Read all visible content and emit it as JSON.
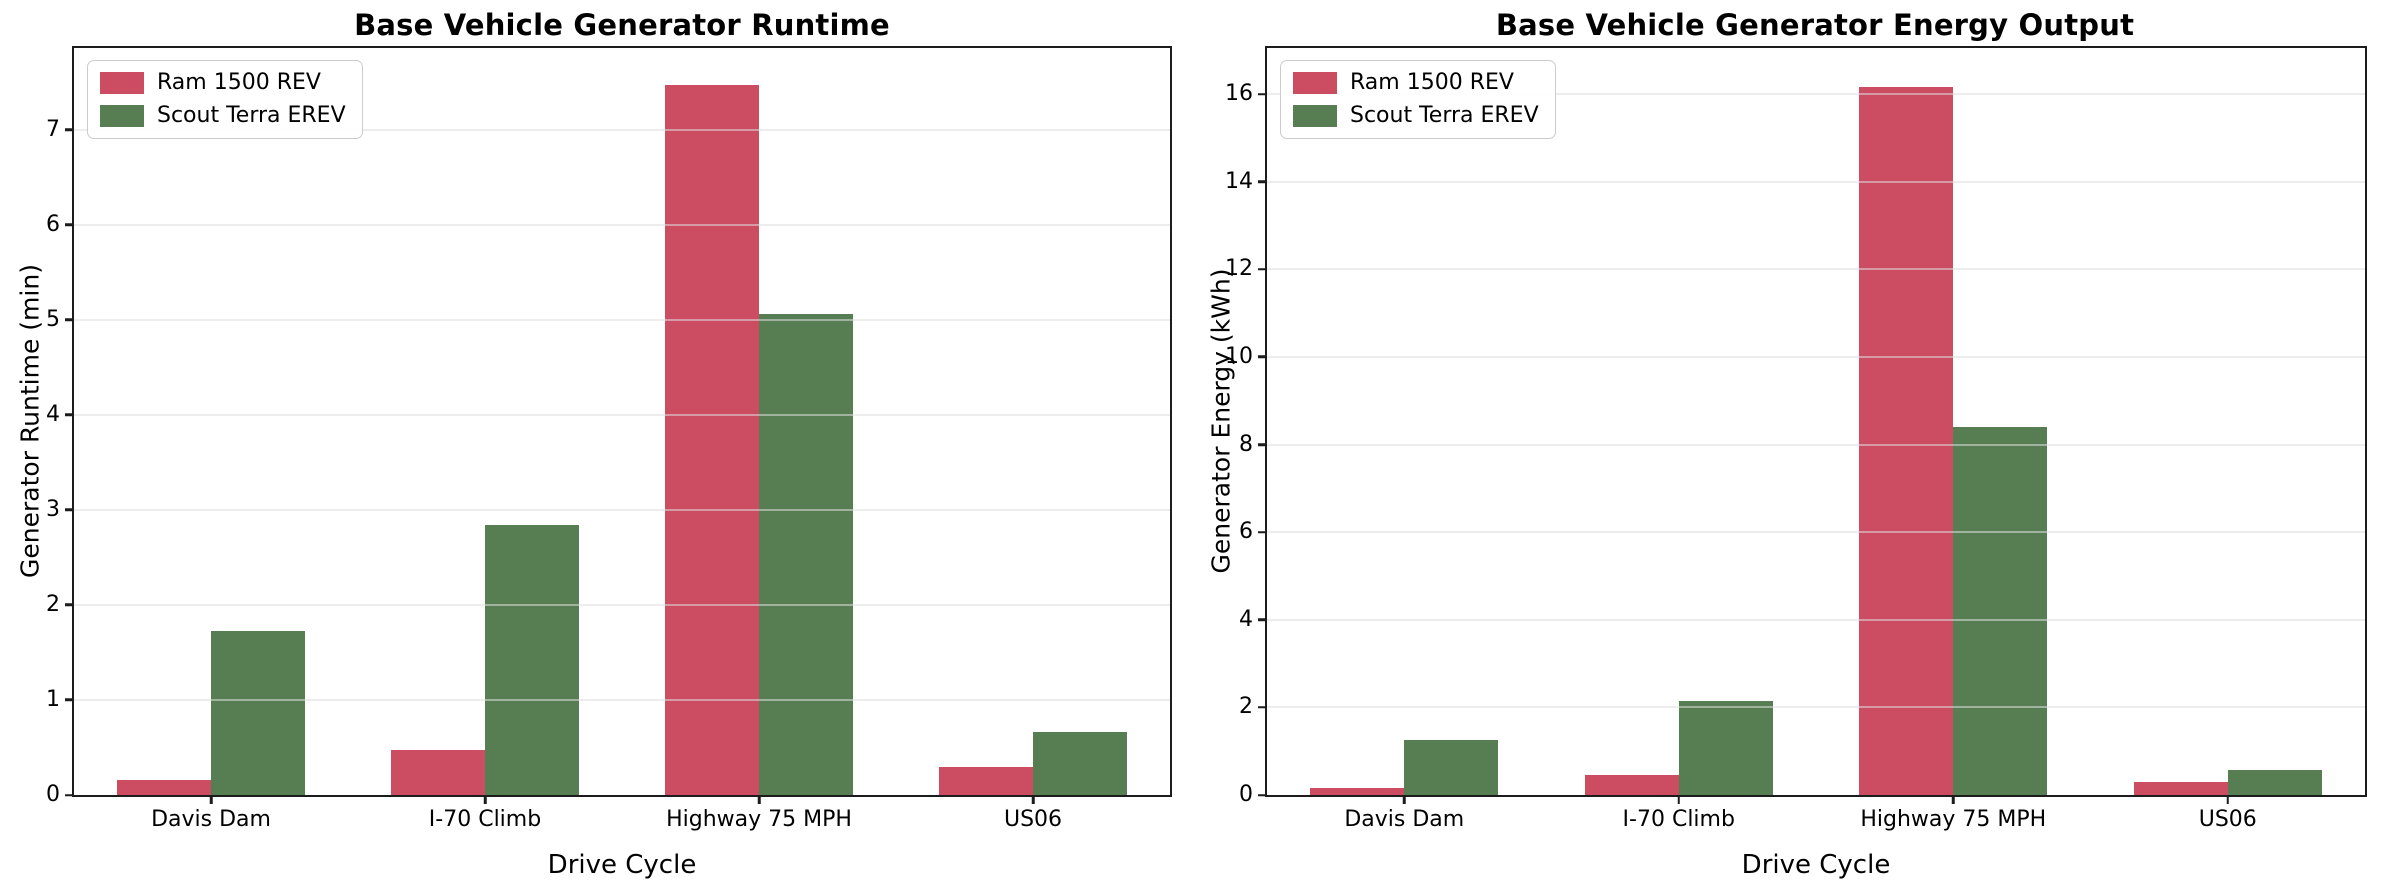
{
  "page": {
    "background": "#ffffff"
  },
  "colors": {
    "ram": "#cc4c62",
    "scout": "#567e52",
    "grid": "#dedede",
    "spine": "#1c1c1c",
    "legend_border": "#cccccc",
    "text": "#000000"
  },
  "chart_data": [
    {
      "type": "bar",
      "title": "Base Vehicle Generator Runtime",
      "xlabel": "Drive Cycle",
      "ylabel": "Generator Runtime (min)",
      "categories": [
        "Davis Dam",
        "I-70 Climb",
        "Highway 75 MPH",
        "US06"
      ],
      "series": [
        {
          "name": "Ram 1500 REV",
          "color_key": "ram",
          "values": [
            0.16,
            0.47,
            7.47,
            0.29
          ]
        },
        {
          "name": "Scout Terra EREV",
          "color_key": "scout",
          "values": [
            1.73,
            2.84,
            5.06,
            0.66
          ]
        }
      ],
      "ylim": [
        0,
        7.86
      ],
      "yticks": [
        0,
        1,
        2,
        3,
        4,
        5,
        6,
        7
      ],
      "grid": true,
      "legend_position": "upper left"
    },
    {
      "type": "bar",
      "title": "Base Vehicle Generator Energy Output",
      "xlabel": "Drive Cycle",
      "ylabel": "Generator Energy (kWh)",
      "categories": [
        "Davis Dam",
        "I-70 Climb",
        "Highway 75 MPH",
        "US06"
      ],
      "series": [
        {
          "name": "Ram 1500 REV",
          "color_key": "ram",
          "values": [
            0.16,
            0.45,
            16.15,
            0.29
          ]
        },
        {
          "name": "Scout Terra EREV",
          "color_key": "scout",
          "values": [
            1.25,
            2.15,
            8.4,
            0.58
          ]
        }
      ],
      "ylim": [
        0,
        17.05
      ],
      "yticks": [
        0,
        2,
        4,
        6,
        8,
        10,
        12,
        14,
        16
      ],
      "grid": true,
      "legend_position": "upper left"
    }
  ]
}
